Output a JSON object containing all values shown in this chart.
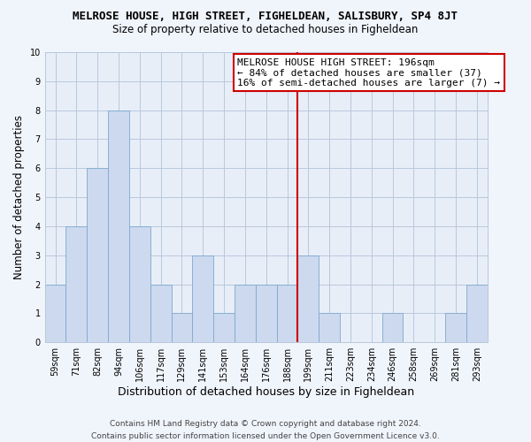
{
  "title": "MELROSE HOUSE, HIGH STREET, FIGHELDEAN, SALISBURY, SP4 8JT",
  "subtitle": "Size of property relative to detached houses in Figheldean",
  "xlabel": "Distribution of detached houses by size in Figheldean",
  "ylabel": "Number of detached properties",
  "bin_labels": [
    "59sqm",
    "71sqm",
    "82sqm",
    "94sqm",
    "106sqm",
    "117sqm",
    "129sqm",
    "141sqm",
    "153sqm",
    "164sqm",
    "176sqm",
    "188sqm",
    "199sqm",
    "211sqm",
    "223sqm",
    "234sqm",
    "246sqm",
    "258sqm",
    "269sqm",
    "281sqm",
    "293sqm"
  ],
  "bar_heights": [
    2,
    4,
    6,
    8,
    4,
    2,
    1,
    3,
    1,
    2,
    2,
    2,
    3,
    1,
    0,
    0,
    1,
    0,
    0,
    1,
    2
  ],
  "bar_color": "#ccd9ee",
  "bar_edge_color": "#7fa8d0",
  "highlight_line_color": "#cc0000",
  "highlight_line_index": 12,
  "ylim": [
    0,
    10
  ],
  "yticks": [
    0,
    1,
    2,
    3,
    4,
    5,
    6,
    7,
    8,
    9,
    10
  ],
  "annotation_title": "MELROSE HOUSE HIGH STREET: 196sqm",
  "annotation_line1": "← 84% of detached houses are smaller (37)",
  "annotation_line2": "16% of semi-detached houses are larger (7) →",
  "footer_line1": "Contains HM Land Registry data © Crown copyright and database right 2024.",
  "footer_line2": "Contains public sector information licensed under the Open Government Licence v3.0.",
  "background_color": "#f0f4fb",
  "plot_bg_color": "#e8eef8",
  "grid_color": "#b8c8dc",
  "title_fontsize": 9,
  "subtitle_fontsize": 8.5,
  "xlabel_fontsize": 9,
  "ylabel_fontsize": 8.5,
  "tick_fontsize": 7,
  "annotation_fontsize": 8,
  "footer_fontsize": 6.5
}
